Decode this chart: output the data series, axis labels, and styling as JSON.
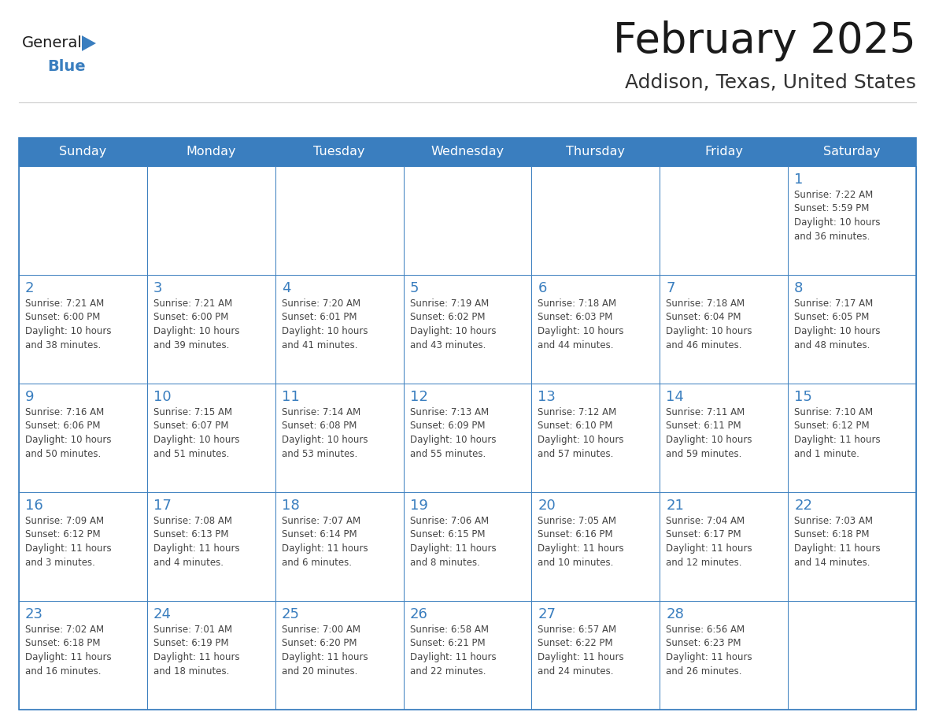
{
  "title": "February 2025",
  "subtitle": "Addison, Texas, United States",
  "days_of_week": [
    "Sunday",
    "Monday",
    "Tuesday",
    "Wednesday",
    "Thursday",
    "Friday",
    "Saturday"
  ],
  "header_bg": "#3a7ebf",
  "header_text": "#ffffff",
  "cell_bg": "#ffffff",
  "border_color": "#3a7ebf",
  "day_number_color": "#3a7ebf",
  "cell_text_color": "#444444",
  "title_color": "#1a1a1a",
  "subtitle_color": "#333333",
  "logo_general_color": "#1a1a1a",
  "logo_blue_color": "#3a7ebf",
  "weeks": [
    [
      {
        "day": null,
        "info": null
      },
      {
        "day": null,
        "info": null
      },
      {
        "day": null,
        "info": null
      },
      {
        "day": null,
        "info": null
      },
      {
        "day": null,
        "info": null
      },
      {
        "day": null,
        "info": null
      },
      {
        "day": 1,
        "info": "Sunrise: 7:22 AM\nSunset: 5:59 PM\nDaylight: 10 hours\nand 36 minutes."
      }
    ],
    [
      {
        "day": 2,
        "info": "Sunrise: 7:21 AM\nSunset: 6:00 PM\nDaylight: 10 hours\nand 38 minutes."
      },
      {
        "day": 3,
        "info": "Sunrise: 7:21 AM\nSunset: 6:00 PM\nDaylight: 10 hours\nand 39 minutes."
      },
      {
        "day": 4,
        "info": "Sunrise: 7:20 AM\nSunset: 6:01 PM\nDaylight: 10 hours\nand 41 minutes."
      },
      {
        "day": 5,
        "info": "Sunrise: 7:19 AM\nSunset: 6:02 PM\nDaylight: 10 hours\nand 43 minutes."
      },
      {
        "day": 6,
        "info": "Sunrise: 7:18 AM\nSunset: 6:03 PM\nDaylight: 10 hours\nand 44 minutes."
      },
      {
        "day": 7,
        "info": "Sunrise: 7:18 AM\nSunset: 6:04 PM\nDaylight: 10 hours\nand 46 minutes."
      },
      {
        "day": 8,
        "info": "Sunrise: 7:17 AM\nSunset: 6:05 PM\nDaylight: 10 hours\nand 48 minutes."
      }
    ],
    [
      {
        "day": 9,
        "info": "Sunrise: 7:16 AM\nSunset: 6:06 PM\nDaylight: 10 hours\nand 50 minutes."
      },
      {
        "day": 10,
        "info": "Sunrise: 7:15 AM\nSunset: 6:07 PM\nDaylight: 10 hours\nand 51 minutes."
      },
      {
        "day": 11,
        "info": "Sunrise: 7:14 AM\nSunset: 6:08 PM\nDaylight: 10 hours\nand 53 minutes."
      },
      {
        "day": 12,
        "info": "Sunrise: 7:13 AM\nSunset: 6:09 PM\nDaylight: 10 hours\nand 55 minutes."
      },
      {
        "day": 13,
        "info": "Sunrise: 7:12 AM\nSunset: 6:10 PM\nDaylight: 10 hours\nand 57 minutes."
      },
      {
        "day": 14,
        "info": "Sunrise: 7:11 AM\nSunset: 6:11 PM\nDaylight: 10 hours\nand 59 minutes."
      },
      {
        "day": 15,
        "info": "Sunrise: 7:10 AM\nSunset: 6:12 PM\nDaylight: 11 hours\nand 1 minute."
      }
    ],
    [
      {
        "day": 16,
        "info": "Sunrise: 7:09 AM\nSunset: 6:12 PM\nDaylight: 11 hours\nand 3 minutes."
      },
      {
        "day": 17,
        "info": "Sunrise: 7:08 AM\nSunset: 6:13 PM\nDaylight: 11 hours\nand 4 minutes."
      },
      {
        "day": 18,
        "info": "Sunrise: 7:07 AM\nSunset: 6:14 PM\nDaylight: 11 hours\nand 6 minutes."
      },
      {
        "day": 19,
        "info": "Sunrise: 7:06 AM\nSunset: 6:15 PM\nDaylight: 11 hours\nand 8 minutes."
      },
      {
        "day": 20,
        "info": "Sunrise: 7:05 AM\nSunset: 6:16 PM\nDaylight: 11 hours\nand 10 minutes."
      },
      {
        "day": 21,
        "info": "Sunrise: 7:04 AM\nSunset: 6:17 PM\nDaylight: 11 hours\nand 12 minutes."
      },
      {
        "day": 22,
        "info": "Sunrise: 7:03 AM\nSunset: 6:18 PM\nDaylight: 11 hours\nand 14 minutes."
      }
    ],
    [
      {
        "day": 23,
        "info": "Sunrise: 7:02 AM\nSunset: 6:18 PM\nDaylight: 11 hours\nand 16 minutes."
      },
      {
        "day": 24,
        "info": "Sunrise: 7:01 AM\nSunset: 6:19 PM\nDaylight: 11 hours\nand 18 minutes."
      },
      {
        "day": 25,
        "info": "Sunrise: 7:00 AM\nSunset: 6:20 PM\nDaylight: 11 hours\nand 20 minutes."
      },
      {
        "day": 26,
        "info": "Sunrise: 6:58 AM\nSunset: 6:21 PM\nDaylight: 11 hours\nand 22 minutes."
      },
      {
        "day": 27,
        "info": "Sunrise: 6:57 AM\nSunset: 6:22 PM\nDaylight: 11 hours\nand 24 minutes."
      },
      {
        "day": 28,
        "info": "Sunrise: 6:56 AM\nSunset: 6:23 PM\nDaylight: 11 hours\nand 26 minutes."
      },
      {
        "day": null,
        "info": null
      }
    ]
  ],
  "fig_width": 11.88,
  "fig_height": 9.18,
  "dpi": 100
}
